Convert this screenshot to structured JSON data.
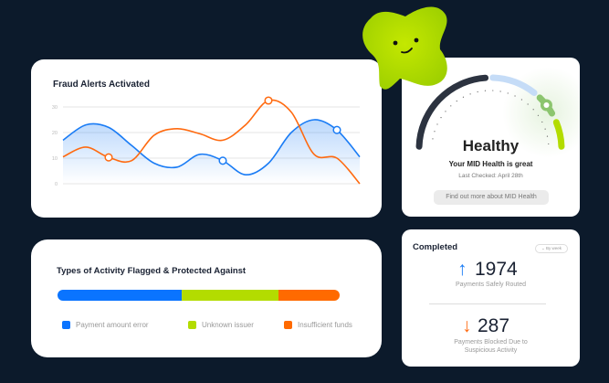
{
  "fraud_chart": {
    "title": "Fraud Alerts Activated"
  },
  "chart_data": {
    "type": "line",
    "title": "Fraud Alerts Activated",
    "ylim": [
      0,
      30
    ],
    "yticks": [
      "0",
      "10",
      "20",
      "30"
    ],
    "grid": true,
    "x": [
      0,
      1,
      2,
      3,
      4,
      5,
      6,
      7,
      8,
      9,
      10,
      11,
      12,
      13
    ],
    "series": [
      {
        "color": "#1a7cf5",
        "area": true,
        "values": [
          17,
          23,
          22,
          15,
          8,
          6.5,
          11.5,
          9,
          3.5,
          8,
          20,
          25,
          21,
          10.5
        ],
        "markers": [
          7,
          12
        ]
      },
      {
        "color": "#ff6a10",
        "area": false,
        "values": [
          10.5,
          14.3,
          10.3,
          9,
          19,
          21.5,
          19.5,
          17,
          23,
          32.5,
          28,
          11.5,
          10,
          0
        ],
        "markers": [
          2,
          9
        ]
      }
    ]
  },
  "health": {
    "status": "Healthy",
    "message": "Your MID Health is great",
    "last_checked": "Last Checked: April 28th",
    "button": "Find out more about MID Health"
  },
  "activity": {
    "title": "Types of Activity Flagged & Protected Against",
    "segments": [
      {
        "label": "Payment amount error",
        "percent": 44,
        "color": "#0a74ff"
      },
      {
        "label": "Unknown issuer",
        "percent": 34.3,
        "color": "#b3dc00"
      },
      {
        "label": "Insufficient funds",
        "percent": 21.7,
        "color": "#ff6a00"
      }
    ]
  },
  "completed": {
    "title": "Completed",
    "filter": "By week",
    "routed_value": "1974",
    "routed_label": "Payments Safely Routed",
    "blocked_value": "287",
    "blocked_label_1": "Payments Blocked Due to",
    "blocked_label_2": "Suspicious Activity",
    "up_color": "#1a7cf5",
    "down_color": "#ff6a10"
  }
}
